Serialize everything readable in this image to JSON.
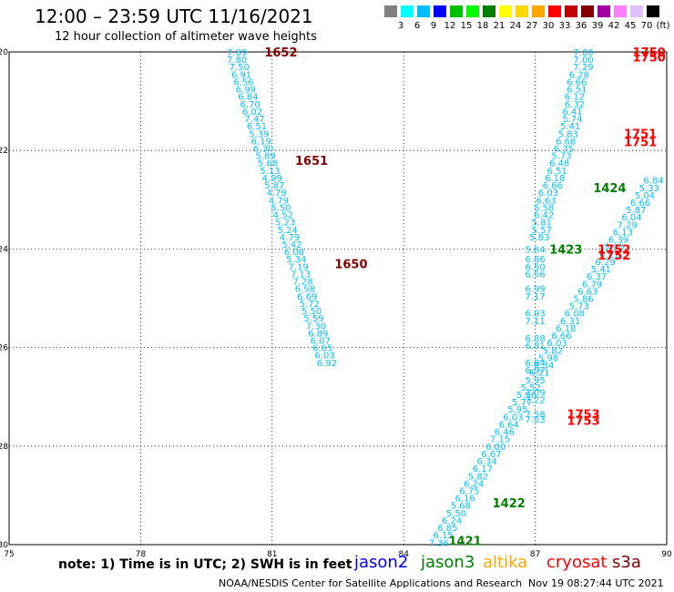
{
  "header": {
    "title": "12:00 – 23:59 UTC 11/16/2021",
    "subtitle": "12 hour collection of altimeter wave heights"
  },
  "colorbar": {
    "labels": [
      "3",
      "6",
      "9",
      "12",
      "15",
      "18",
      "21",
      "24",
      "27",
      "30",
      "33",
      "36",
      "39",
      "42",
      "45",
      "70",
      "(ft)"
    ],
    "colors": [
      "#808080",
      "#00ffff",
      "#00bfff",
      "#0000ff",
      "#00c000",
      "#00ff00",
      "#008000",
      "#ffff00",
      "#ffd700",
      "#ffa500",
      "#ff0000",
      "#c00000",
      "#800000",
      "#a000a0",
      "#ff80ff",
      "#e0c0ff",
      "#000000"
    ]
  },
  "footer": {
    "note": "note: 1) Time is in UTC; 2) SWH is in feet",
    "legend": [
      {
        "label": "jason2",
        "color": "#0000ff"
      },
      {
        "label": "jason3",
        "color": "#008000"
      },
      {
        "label": "altika",
        "color": "#ffa500"
      },
      {
        "label": "cryosat",
        "color": "#ff0000"
      },
      {
        "label": "s3a",
        "color": "#800000"
      }
    ],
    "credit": "NOAA/NESDIS Center for Satellite Applications and Research",
    "timestamp": "Nov 19 08:27:44 UTC 2021"
  },
  "chart_data": {
    "type": "scatter",
    "title": "12:00 – 23:59 UTC 11/16/2021",
    "subtitle": "12 hour collection of altimeter wave heights",
    "xlabel": "",
    "ylabel": "",
    "xlim": [
      75,
      90
    ],
    "ylim": [
      -30,
      -20
    ],
    "xticks": [
      "75",
      "78",
      "81",
      "84",
      "87",
      "90"
    ],
    "yticks": [
      "-30",
      "-28",
      "-26",
      "-24",
      "-22",
      "-20"
    ],
    "grid": true,
    "track_color": "#00bfff",
    "tracks": [
      {
        "name": "left",
        "points": [
          [
            80.2,
            -20.0,
            "7.89"
          ],
          [
            80.2,
            -20.15,
            "7.80"
          ],
          [
            80.25,
            -20.3,
            "7.50"
          ],
          [
            80.3,
            -20.45,
            "6.91"
          ],
          [
            80.35,
            -20.6,
            "6.56"
          ],
          [
            80.4,
            -20.75,
            "6.99"
          ],
          [
            80.45,
            -20.9,
            "6.84"
          ],
          [
            80.5,
            -21.05,
            "6.70"
          ],
          [
            80.55,
            -21.2,
            "6.02"
          ],
          [
            80.6,
            -21.35,
            "7.47"
          ],
          [
            80.65,
            -21.5,
            "6.51"
          ],
          [
            80.7,
            -21.65,
            "5.39"
          ],
          [
            80.75,
            -21.8,
            "6.19"
          ],
          [
            80.8,
            -21.95,
            "6.30"
          ],
          [
            80.85,
            -22.1,
            "5.89"
          ],
          [
            80.9,
            -22.25,
            "5.68"
          ],
          [
            80.95,
            -22.4,
            "5.13"
          ],
          [
            81.0,
            -22.55,
            "4.99"
          ],
          [
            81.05,
            -22.7,
            "5.87"
          ],
          [
            81.1,
            -22.85,
            "4.79"
          ],
          [
            81.15,
            -23.0,
            "4.79"
          ],
          [
            81.2,
            -23.15,
            "5.50"
          ],
          [
            81.25,
            -23.3,
            "4.52"
          ],
          [
            81.3,
            -23.45,
            "5.23"
          ],
          [
            81.35,
            -23.6,
            "5.24"
          ],
          [
            81.4,
            -23.75,
            "4.79"
          ],
          [
            81.45,
            -23.9,
            "5.42"
          ],
          [
            81.5,
            -24.05,
            "6.08"
          ],
          [
            81.55,
            -24.2,
            "5.34"
          ],
          [
            81.6,
            -24.35,
            "7.19"
          ],
          [
            81.65,
            -24.5,
            "7.13"
          ],
          [
            81.7,
            -24.65,
            "7.28"
          ],
          [
            81.75,
            -24.8,
            "6.58"
          ],
          [
            81.8,
            -24.95,
            "6.69"
          ],
          [
            81.85,
            -25.1,
            "5.72"
          ],
          [
            81.9,
            -25.25,
            "5.50"
          ],
          [
            81.95,
            -25.4,
            "5.59"
          ],
          [
            82.0,
            -25.55,
            "7.30"
          ],
          [
            82.05,
            -25.7,
            "6.89"
          ],
          [
            82.1,
            -25.85,
            "6.07"
          ],
          [
            82.15,
            -26.0,
            "6.65"
          ],
          [
            82.2,
            -26.15,
            "6.03"
          ],
          [
            82.25,
            -26.3,
            "6.92"
          ]
        ]
      },
      {
        "name": "middle",
        "points": [
          [
            84.8,
            -29.95,
            "7.36"
          ],
          [
            84.9,
            -29.8,
            "6.15"
          ],
          [
            85.0,
            -29.65,
            "6.85"
          ],
          [
            85.1,
            -29.5,
            "6.24"
          ],
          [
            85.2,
            -29.35,
            "5.50"
          ],
          [
            85.3,
            -29.2,
            "5.68"
          ],
          [
            85.4,
            -29.05,
            "6.16"
          ],
          [
            85.5,
            -28.9,
            "6.75"
          ],
          [
            85.6,
            -28.75,
            "6.24"
          ],
          [
            85.7,
            -28.6,
            "5.82"
          ],
          [
            85.8,
            -28.45,
            "6.17"
          ],
          [
            85.9,
            -28.3,
            "6.34"
          ],
          [
            86.0,
            -28.15,
            "6.67"
          ],
          [
            86.1,
            -28.0,
            "6.00"
          ],
          [
            86.2,
            -27.85,
            "7.15"
          ],
          [
            86.3,
            -27.7,
            "6.46"
          ],
          [
            86.4,
            -27.55,
            "6.64"
          ],
          [
            86.5,
            -27.4,
            "6.03"
          ],
          [
            86.6,
            -27.25,
            "5.95"
          ],
          [
            86.7,
            -27.1,
            "5.77"
          ],
          [
            86.8,
            -26.95,
            "5.96"
          ],
          [
            86.9,
            -26.8,
            "5.52"
          ],
          [
            87.0,
            -26.65,
            "5.95"
          ],
          [
            87.1,
            -26.5,
            "6.21"
          ],
          [
            87.2,
            -26.35,
            "6.34"
          ],
          [
            87.3,
            -26.2,
            "5.98"
          ],
          [
            87.4,
            -26.05,
            "5.82"
          ],
          [
            87.5,
            -25.9,
            "6.03"
          ],
          [
            87.6,
            -25.75,
            "6.66"
          ],
          [
            87.7,
            -25.6,
            "6.18"
          ],
          [
            87.8,
            -25.45,
            "6.31"
          ],
          [
            87.9,
            -25.3,
            "6.08"
          ],
          [
            88.0,
            -25.15,
            "5.73"
          ],
          [
            88.1,
            -25.0,
            "5.86"
          ],
          [
            88.2,
            -24.85,
            "6.63"
          ],
          [
            88.3,
            -24.7,
            "6.79"
          ],
          [
            88.4,
            -24.55,
            "6.37"
          ],
          [
            88.5,
            -24.4,
            "5.41"
          ],
          [
            88.6,
            -24.25,
            "6.29"
          ],
          [
            88.7,
            -24.1,
            "6.21"
          ],
          [
            88.8,
            -23.95,
            "5.93"
          ],
          [
            88.9,
            -23.8,
            "6.39"
          ],
          [
            89.0,
            -23.65,
            "6.13"
          ],
          [
            89.1,
            -23.5,
            "7.29"
          ],
          [
            89.2,
            -23.35,
            "6.04"
          ],
          [
            89.3,
            -23.2,
            "5.87"
          ],
          [
            89.4,
            -23.05,
            "6.66"
          ],
          [
            89.5,
            -22.9,
            "5.04"
          ],
          [
            89.6,
            -22.75,
            "5.33"
          ],
          [
            89.7,
            -22.6,
            "6.84"
          ]
        ]
      },
      {
        "name": "right",
        "points": [
          [
            88.1,
            -20.0,
            "7.00"
          ],
          [
            88.1,
            -20.15,
            "7.00"
          ],
          [
            88.1,
            -20.3,
            "7.29"
          ],
          [
            88.0,
            -20.45,
            "6.28"
          ],
          [
            87.95,
            -20.6,
            "6.66"
          ],
          [
            87.95,
            -20.75,
            "6.51"
          ],
          [
            87.9,
            -20.9,
            "6.12"
          ],
          [
            87.9,
            -21.05,
            "6.32"
          ],
          [
            87.85,
            -21.2,
            "6.41"
          ],
          [
            87.85,
            -21.35,
            "5.74"
          ],
          [
            87.8,
            -21.5,
            "5.41"
          ],
          [
            87.75,
            -21.65,
            "5.83"
          ],
          [
            87.7,
            -21.8,
            "6.68"
          ],
          [
            87.65,
            -21.95,
            "6.35"
          ],
          [
            87.6,
            -22.1,
            "5.73"
          ],
          [
            87.55,
            -22.25,
            "6.48"
          ],
          [
            87.5,
            -22.4,
            "6.51"
          ],
          [
            87.45,
            -22.55,
            "6.18"
          ],
          [
            87.4,
            -22.7,
            "6.66"
          ],
          [
            87.3,
            -22.85,
            "6.03"
          ],
          [
            87.25,
            -23.0,
            "6.63"
          ],
          [
            87.2,
            -23.15,
            "5.58"
          ],
          [
            87.2,
            -23.3,
            "6.42"
          ],
          [
            87.15,
            -23.45,
            "5.81"
          ],
          [
            87.15,
            -23.6,
            "5.57"
          ],
          [
            87.1,
            -23.75,
            "5.83"
          ],
          [
            87.0,
            -24.0,
            "5.84"
          ],
          [
            87.0,
            -24.2,
            "6.86"
          ],
          [
            87.0,
            -24.35,
            "6.50"
          ],
          [
            87.0,
            -24.5,
            "6.56"
          ],
          [
            87.0,
            -24.8,
            "6.99"
          ],
          [
            87.0,
            -24.95,
            "7.17"
          ],
          [
            87.0,
            -25.3,
            "6.93"
          ],
          [
            87.0,
            -25.45,
            "7.11"
          ],
          [
            87.0,
            -25.8,
            "6.88"
          ],
          [
            87.0,
            -25.95,
            "6.81"
          ],
          [
            87.0,
            -26.3,
            "6.94"
          ],
          [
            87.0,
            -26.45,
            "6.97"
          ],
          [
            87.0,
            -26.9,
            "7.09"
          ],
          [
            87.0,
            -27.05,
            "7.22"
          ],
          [
            87.0,
            -27.35,
            "7.58"
          ],
          [
            87.0,
            -27.45,
            "7.53"
          ]
        ]
      }
    ],
    "time_labels": [
      {
        "x": 81.2,
        "y": -20.0,
        "text": "1652",
        "color": "#800000"
      },
      {
        "x": 81.9,
        "y": -22.2,
        "text": "1651",
        "color": "#800000"
      },
      {
        "x": 82.8,
        "y": -24.3,
        "text": "1650",
        "color": "#800000"
      },
      {
        "x": 88.7,
        "y": -22.75,
        "text": "1424",
        "color": "#008000"
      },
      {
        "x": 87.7,
        "y": -24.0,
        "text": "1423",
        "color": "#008000"
      },
      {
        "x": 86.4,
        "y": -29.15,
        "text": "1422",
        "color": "#008000"
      },
      {
        "x": 85.4,
        "y": -29.92,
        "text": "1421",
        "color": "#008000"
      },
      {
        "x": 89.6,
        "y": -20.0,
        "text": "1750",
        "color": "#ff0000"
      },
      {
        "x": 89.6,
        "y": -20.1,
        "text": "1750",
        "color": "#ff0000"
      },
      {
        "x": 89.4,
        "y": -21.65,
        "text": "1751",
        "color": "#ff0000"
      },
      {
        "x": 89.4,
        "y": -21.82,
        "text": "1751",
        "color": "#ff0000"
      },
      {
        "x": 88.8,
        "y": -24.0,
        "text": "1752",
        "color": "#ff0000"
      },
      {
        "x": 88.8,
        "y": -24.12,
        "text": "1752",
        "color": "#ff0000"
      },
      {
        "x": 88.1,
        "y": -27.35,
        "text": "1753",
        "color": "#ff0000"
      },
      {
        "x": 88.1,
        "y": -27.48,
        "text": "1753",
        "color": "#ff0000"
      }
    ]
  }
}
